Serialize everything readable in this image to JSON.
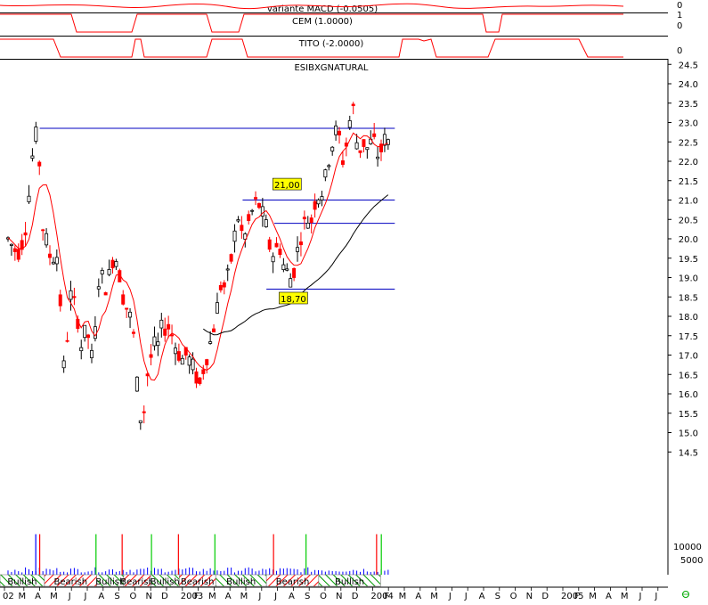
{
  "chart_data": {
    "type": "candlestick",
    "panels": {
      "macd": {
        "label": "variante MACD (-0.0505)",
        "axis_ticks": [
          "0"
        ]
      },
      "cem": {
        "label": "CEM (1.0000)",
        "axis_ticks": [
          "1",
          "0"
        ]
      },
      "tito": {
        "label": "TITO (-2.0000)",
        "axis_ticks": [
          "0"
        ]
      },
      "price": {
        "label": "ESIBXGNATURAL"
      },
      "volume": {
        "axis_ticks": [
          "10000",
          "5000"
        ]
      }
    },
    "y_ticks": [
      "24.5",
      "24.0",
      "23.5",
      "23.0",
      "22.5",
      "22.0",
      "21.5",
      "21.0",
      "20.5",
      "20.0",
      "19.5",
      "19.0",
      "18.5",
      "18.0",
      "17.5",
      "17.0",
      "16.5",
      "16.0",
      "15.5",
      "15.0",
      "14.5"
    ],
    "ylim": [
      14.5,
      24.5
    ],
    "x_labels": [
      "02",
      "M",
      "A",
      "M",
      "J",
      "J",
      "A",
      "S",
      "O",
      "N",
      "D",
      "2003",
      "F",
      "M",
      "A",
      "M",
      "J",
      "J",
      "A",
      "S",
      "O",
      "N",
      "D",
      "2004",
      "F",
      "M",
      "A",
      "M",
      "J",
      "J",
      "A",
      "S",
      "O",
      "N",
      "D",
      "2005",
      "F",
      "M",
      "A",
      "M",
      "J",
      "J"
    ],
    "horizontal_levels": [
      22.85,
      21.0,
      20.4,
      18.7
    ],
    "annotations": [
      "21,00",
      "18,70"
    ],
    "regimes": [
      {
        "label": "Bullish",
        "kind": "bull"
      },
      {
        "label": "Bearish",
        "kind": "bear"
      },
      {
        "label": "Bullish",
        "kind": "bull"
      },
      {
        "label": "Bearish",
        "kind": "bear"
      },
      {
        "label": "Bullish",
        "kind": "bull"
      },
      {
        "label": "Bearish",
        "kind": "bear"
      },
      {
        "label": "Bullish",
        "kind": "bull"
      },
      {
        "label": "Bearish",
        "kind": "bear"
      },
      {
        "label": "Bullish",
        "kind": "bull"
      }
    ],
    "regime_bounds": [
      0,
      2.3,
      5.6,
      7.3,
      9.0,
      10.8,
      13.1,
      16.3,
      19.6,
      23.5
    ],
    "price_path": [
      [
        0,
        20.0
      ],
      [
        0.3,
        19.8
      ],
      [
        0.6,
        19.6
      ],
      [
        0.9,
        19.9
      ],
      [
        1.2,
        20.5
      ],
      [
        1.45,
        21.8
      ],
      [
        1.65,
        22.5
      ],
      [
        1.85,
        22.8
      ],
      [
        2.05,
        21.5
      ],
      [
        2.2,
        20.3
      ],
      [
        2.4,
        20.0
      ],
      [
        2.6,
        19.6
      ],
      [
        2.8,
        19.4
      ],
      [
        3.0,
        19.8
      ],
      [
        3.2,
        19.2
      ],
      [
        3.4,
        17.5
      ],
      [
        3.55,
        16.5
      ],
      [
        3.7,
        17.2
      ],
      [
        3.9,
        18.6
      ],
      [
        4.1,
        18.4
      ],
      [
        4.3,
        18.2
      ],
      [
        4.5,
        17.6
      ],
      [
        4.7,
        17.0
      ],
      [
        4.9,
        17.8
      ],
      [
        5.1,
        17.4
      ],
      [
        5.3,
        16.9
      ],
      [
        5.5,
        17.6
      ],
      [
        5.7,
        18.9
      ],
      [
        5.9,
        19.1
      ],
      [
        6.1,
        18.7
      ],
      [
        6.3,
        18.9
      ],
      [
        6.5,
        19.3
      ],
      [
        6.7,
        19.6
      ],
      [
        6.9,
        19.4
      ],
      [
        7.1,
        18.9
      ],
      [
        7.3,
        18.4
      ],
      [
        7.5,
        18.2
      ],
      [
        7.7,
        18.0
      ],
      [
        7.9,
        17.6
      ],
      [
        8.05,
        16.8
      ],
      [
        8.2,
        15.9
      ],
      [
        8.35,
        15.4
      ],
      [
        8.5,
        15.3
      ],
      [
        8.65,
        15.8
      ],
      [
        8.8,
        16.5
      ],
      [
        9.0,
        16.9
      ],
      [
        9.2,
        17.3
      ],
      [
        9.4,
        17.1
      ],
      [
        9.6,
        17.6
      ],
      [
        9.8,
        17.8
      ],
      [
        10.0,
        17.6
      ],
      [
        10.2,
        17.8
      ],
      [
        10.4,
        17.4
      ],
      [
        10.6,
        17.2
      ],
      [
        10.8,
        17.0
      ],
      [
        11.0,
        16.9
      ],
      [
        11.2,
        17.0
      ],
      [
        11.4,
        16.9
      ],
      [
        11.6,
        16.8
      ],
      [
        11.8,
        16.5
      ],
      [
        12.0,
        16.3
      ],
      [
        12.15,
        16.2
      ],
      [
        12.3,
        16.6
      ],
      [
        12.5,
        16.9
      ],
      [
        12.7,
        17.2
      ],
      [
        12.9,
        17.6
      ],
      [
        13.1,
        17.9
      ],
      [
        13.3,
        18.6
      ],
      [
        13.5,
        18.9
      ],
      [
        13.7,
        18.7
      ],
      [
        13.9,
        19.1
      ],
      [
        14.1,
        19.5
      ],
      [
        14.3,
        20.1
      ],
      [
        14.5,
        20.6
      ],
      [
        14.7,
        20.2
      ],
      [
        14.9,
        20.0
      ],
      [
        15.1,
        20.3
      ],
      [
        15.3,
        20.6
      ],
      [
        15.5,
        20.8
      ],
      [
        15.7,
        21.0
      ],
      [
        15.9,
        20.8
      ],
      [
        16.1,
        20.6
      ],
      [
        16.3,
        20.3
      ],
      [
        16.5,
        19.8
      ],
      [
        16.7,
        19.6
      ],
      [
        16.9,
        19.7
      ],
      [
        17.1,
        19.9
      ],
      [
        17.3,
        19.4
      ],
      [
        17.5,
        19.2
      ],
      [
        17.7,
        19.1
      ],
      [
        17.9,
        18.9
      ],
      [
        18.1,
        19.3
      ],
      [
        18.3,
        19.8
      ],
      [
        18.5,
        20.1
      ],
      [
        18.7,
        20.4
      ],
      [
        18.9,
        20.5
      ],
      [
        19.1,
        20.4
      ],
      [
        19.3,
        20.8
      ],
      [
        19.5,
        21.2
      ],
      [
        19.7,
        21.0
      ],
      [
        19.9,
        21.4
      ],
      [
        20.1,
        21.7
      ],
      [
        20.3,
        22.2
      ],
      [
        20.5,
        22.5
      ],
      [
        20.7,
        22.8
      ],
      [
        20.9,
        22.6
      ],
      [
        21.1,
        22.0
      ],
      [
        21.3,
        22.3
      ],
      [
        21.5,
        22.9
      ],
      [
        21.7,
        23.4
      ],
      [
        21.85,
        23.3
      ],
      [
        22.0,
        22.5
      ],
      [
        22.2,
        22.3
      ],
      [
        22.4,
        22.5
      ],
      [
        22.6,
        22.3
      ],
      [
        22.8,
        22.4
      ],
      [
        23.0,
        22.6
      ],
      [
        23.2,
        22.4
      ],
      [
        23.4,
        22.0
      ],
      [
        23.6,
        22.4
      ],
      [
        23.8,
        22.6
      ],
      [
        23.95,
        22.5
      ]
    ],
    "volume_spikes": [
      {
        "m": 1.75,
        "v": 13000,
        "kind": "blue"
      },
      {
        "m": 2.0,
        "v": 13000,
        "kind": "red"
      },
      {
        "m": 5.55,
        "v": 13000,
        "kind": "green"
      },
      {
        "m": 7.2,
        "v": 13000,
        "kind": "red"
      },
      {
        "m": 9.05,
        "v": 13000,
        "kind": "green"
      },
      {
        "m": 10.75,
        "v": 13000,
        "kind": "red"
      },
      {
        "m": 13.05,
        "v": 13000,
        "kind": "green"
      },
      {
        "m": 16.75,
        "v": 13000,
        "kind": "red"
      },
      {
        "m": 18.8,
        "v": 13000,
        "kind": "green"
      },
      {
        "m": 23.25,
        "v": 13000,
        "kind": "red"
      },
      {
        "m": 23.55,
        "v": 13000,
        "kind": "green"
      }
    ],
    "colors": {
      "up": "#000000",
      "down": "#ff0000",
      "ma_short": "#ff0000",
      "ma_long": "#000000",
      "level_line": "#0000c0",
      "indicator": "#ff0000",
      "annotation_bg": "#ffff00",
      "bull_hatch": "#009900",
      "bear_hatch": "#ff0000",
      "vol_blue": "#0000ff",
      "vol_red": "#ff0000",
      "vol_green": "#00cc00",
      "axis_text": "#000000",
      "globe": "#00aa00"
    }
  }
}
